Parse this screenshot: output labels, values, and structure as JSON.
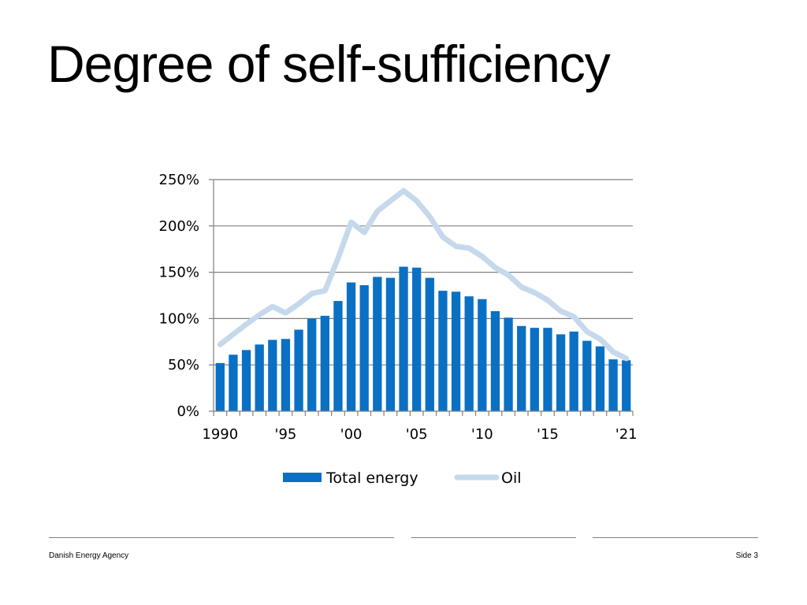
{
  "slide": {
    "title": "Degree of self-sufficiency"
  },
  "footer": {
    "organization": "Danish Energy Agency",
    "page": "Side 3"
  },
  "colors": {
    "total_energy": "#0a70c4",
    "oil": "#c6d9ec",
    "grid": "#808080",
    "rule": "#7f7f7f"
  },
  "chart_data": {
    "type": "bar",
    "x": [
      1990,
      1991,
      1992,
      1993,
      1994,
      1995,
      1996,
      1997,
      1998,
      1999,
      2000,
      2001,
      2002,
      2003,
      2004,
      2005,
      2006,
      2007,
      2008,
      2009,
      2010,
      2011,
      2012,
      2013,
      2014,
      2015,
      2016,
      2017,
      2018,
      2019,
      2020,
      2021
    ],
    "x_tick_labels": [
      "1990",
      "'95",
      "'00",
      "'05",
      "'10",
      "'15",
      "'21"
    ],
    "x_tick_positions": [
      1990,
      1995,
      2000,
      2005,
      2010,
      2015,
      2021
    ],
    "y_tick_labels": [
      "250%",
      "200%",
      "150%",
      "100%",
      "50%",
      "0%"
    ],
    "y_tick_values": [
      250,
      200,
      150,
      100,
      50,
      0
    ],
    "ylim": [
      0,
      250
    ],
    "grid": true,
    "legend_position": "bottom",
    "series": [
      {
        "name": "Total energy",
        "type": "bar",
        "values": [
          52,
          61,
          66,
          72,
          77,
          78,
          88,
          100,
          103,
          119,
          139,
          136,
          145,
          144,
          156,
          155,
          144,
          130,
          129,
          124,
          121,
          108,
          101,
          92,
          90,
          90,
          83,
          86,
          76,
          70,
          56,
          55
        ]
      },
      {
        "name": "Oil",
        "type": "line",
        "values": [
          72,
          83,
          94,
          104,
          113,
          106,
          116,
          127,
          130,
          165,
          204,
          193,
          216,
          227,
          238,
          227,
          210,
          188,
          178,
          176,
          167,
          155,
          147,
          134,
          128,
          120,
          108,
          102,
          86,
          78,
          64,
          57
        ]
      }
    ]
  }
}
